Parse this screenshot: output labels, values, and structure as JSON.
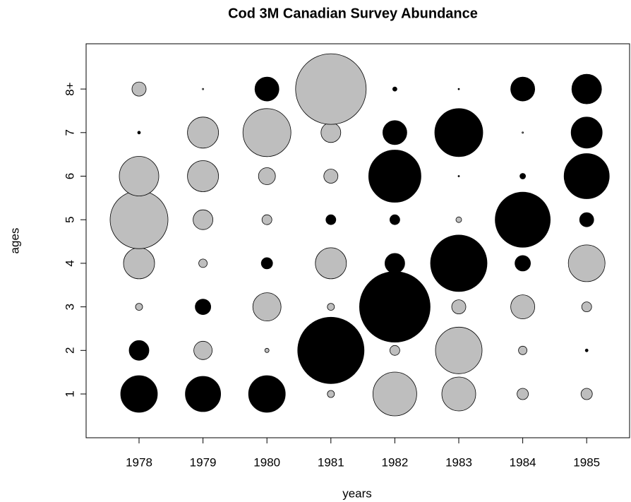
{
  "chart_data": {
    "type": "bubble",
    "title": "Cod 3M Canadian Survey Abundance",
    "x_label": "years",
    "y_label": "ages",
    "categories": [
      "1978",
      "1979",
      "1980",
      "1981",
      "1982",
      "1983",
      "1984",
      "1985"
    ],
    "y_categories": [
      "1",
      "2",
      "3",
      "4",
      "5",
      "6",
      "7",
      "8+"
    ],
    "positive_color": "#000000",
    "negative_color": "#bebebe",
    "values": [
      [
        2.6,
        2.5,
        2.6,
        -0.5,
        -3.1,
        -2.4,
        -0.8,
        -0.8
      ],
      [
        1.4,
        -1.3,
        -0.3,
        4.7,
        -0.7,
        -3.3,
        -0.6,
        0.2
      ],
      [
        -0.5,
        1.1,
        -2.0,
        -0.5,
        5.0,
        -1.0,
        -1.7,
        -0.7
      ],
      [
        -2.2,
        -0.6,
        0.8,
        -2.2,
        1.4,
        4.0,
        1.1,
        -2.6
      ],
      [
        -4.1,
        -1.4,
        -0.7,
        0.7,
        0.7,
        -0.4,
        3.9,
        1.0
      ],
      [
        -2.8,
        -2.2,
        -1.2,
        -1.0,
        3.7,
        0.1,
        0.4,
        3.2
      ],
      [
        0.2,
        -2.2,
        -3.4,
        -1.4,
        1.7,
        3.4,
        -0.1,
        2.2
      ],
      [
        -1.0,
        -0.1,
        1.7,
        -5.0,
        0.3,
        0.1,
        1.7,
        2.1
      ]
    ]
  }
}
